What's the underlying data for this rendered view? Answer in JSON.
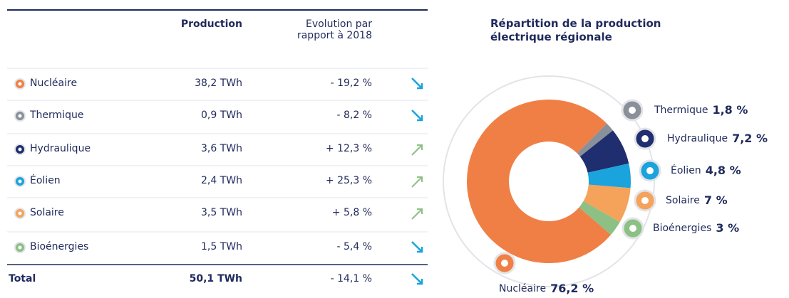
{
  "table": {
    "headers": [
      "Production",
      "Evolution par rapport à 2018"
    ],
    "rows": [
      {
        "label": "Nucléaire",
        "production": "38,2 TWh",
        "evolution": "- 19,2 %"
      },
      {
        "label": "Thermique",
        "production": "0,9 TWh",
        "evolution": "- 8,2 %"
      },
      {
        "label": "Hydraulique",
        "production": "3,6 TWh",
        "evolution": "+ 12,3 %"
      },
      {
        "label": "Éolien",
        "production": "2,4 TWh",
        "evolution": "+ 25,3 %"
      },
      {
        "label": "Solaire",
        "production": "3,5 TWh",
        "evolution": "+ 5,8 %"
      },
      {
        "label": "Bioénergies",
        "production": "1,5 TWh",
        "evolution": "- 5,4 %"
      }
    ],
    "total": {
      "label": "Total",
      "production": "50,1 TWh",
      "evolution": "- 14,1 %"
    }
  },
  "chart_data": {
    "type": "donut",
    "title": "Répartition de la production électrique régionale",
    "categories": [
      "Nucléaire",
      "Thermique",
      "Hydraulique",
      "Éolien",
      "Solaire",
      "Bioénergies"
    ],
    "values": [
      76.2,
      1.8,
      7.2,
      4.8,
      7,
      3
    ],
    "value_labels": [
      "76,2 %",
      "1,8 %",
      "7,2 %",
      "4,8 %",
      "7 %",
      "3 %"
    ],
    "colors": [
      "#f07f45",
      "#8a9099",
      "#1f2e6e",
      "#1aa3dc",
      "#f5a25a",
      "#8cc084"
    ]
  }
}
